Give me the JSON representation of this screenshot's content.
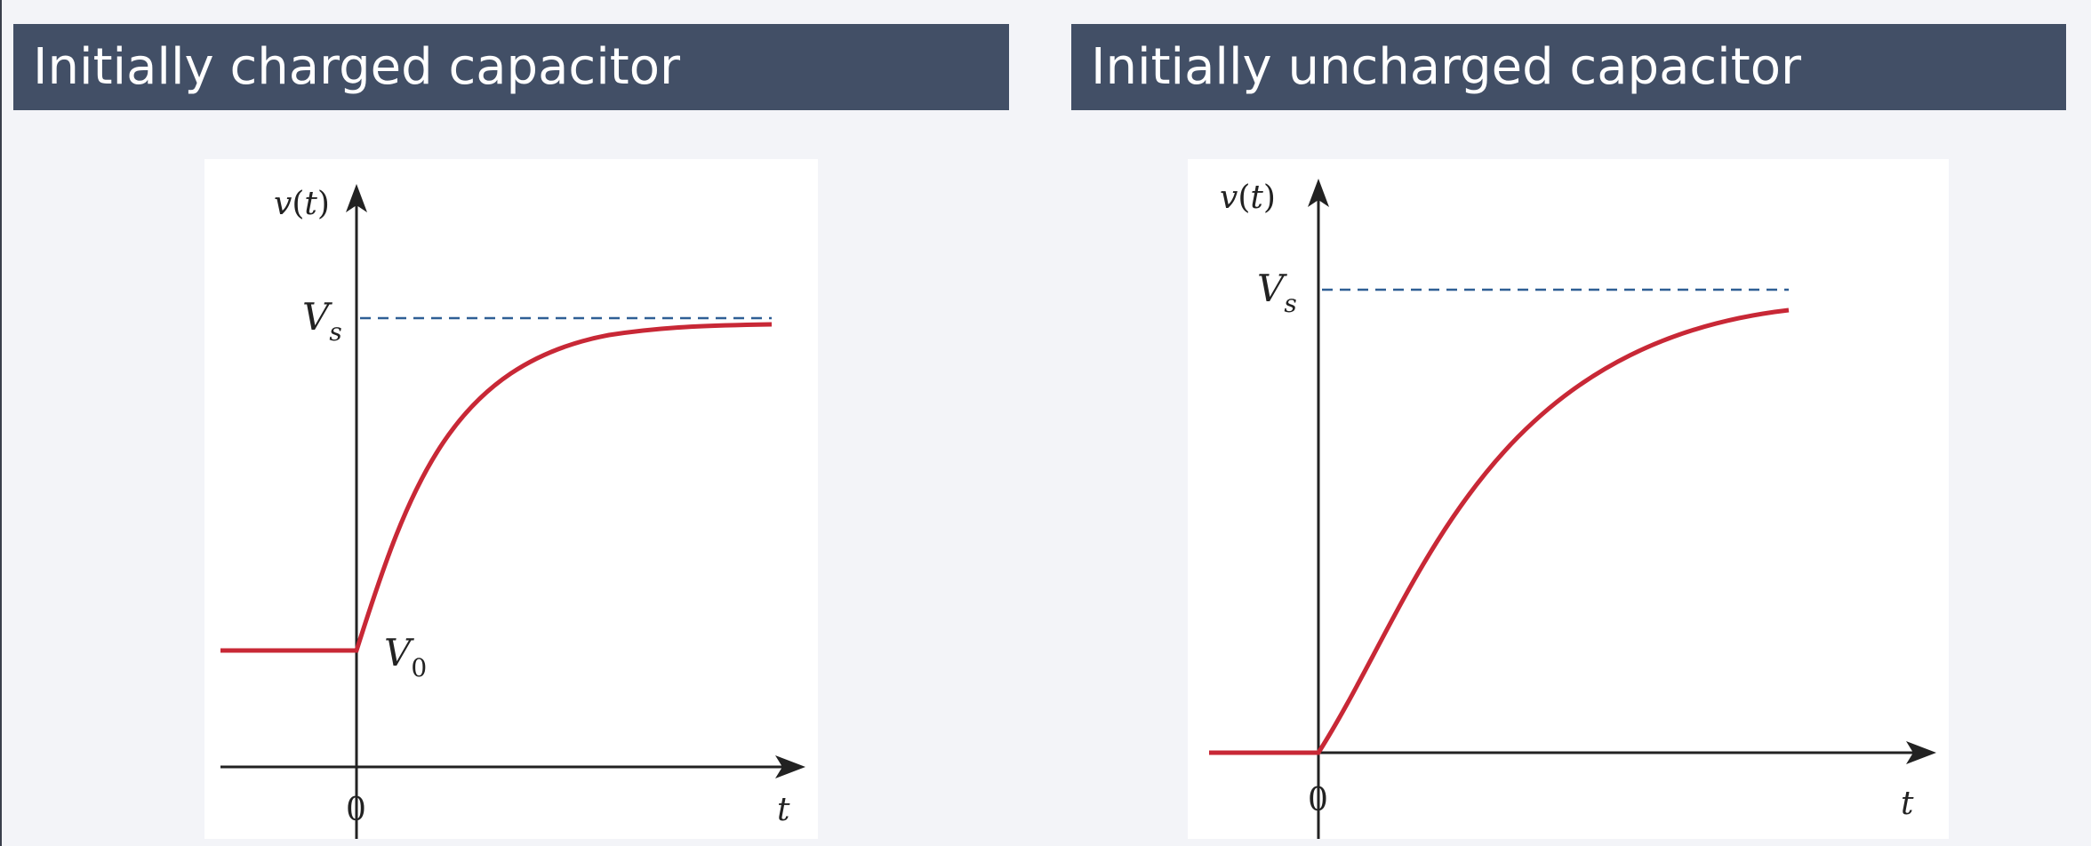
{
  "panels": [
    {
      "header": "Initially charged capacitor",
      "y_label_v": "v",
      "y_label_paren_open": "(",
      "y_label_t": "t",
      "y_label_paren_close": ")",
      "vs_main": "V",
      "vs_sub": "s",
      "v0_main": "V",
      "v0_sub": "0",
      "origin_label": "0",
      "x_label": "t"
    },
    {
      "header": "Initially uncharged capacitor",
      "y_label_v": "v",
      "y_label_paren_open": "(",
      "y_label_t": "t",
      "y_label_paren_close": ")",
      "vs_main": "V",
      "vs_sub": "s",
      "origin_label": "0",
      "x_label": "t"
    }
  ],
  "colors": {
    "header_bg": "#424f66",
    "curve": "#c82836",
    "asymptote": "#2f5f95",
    "axis": "#222222"
  }
}
